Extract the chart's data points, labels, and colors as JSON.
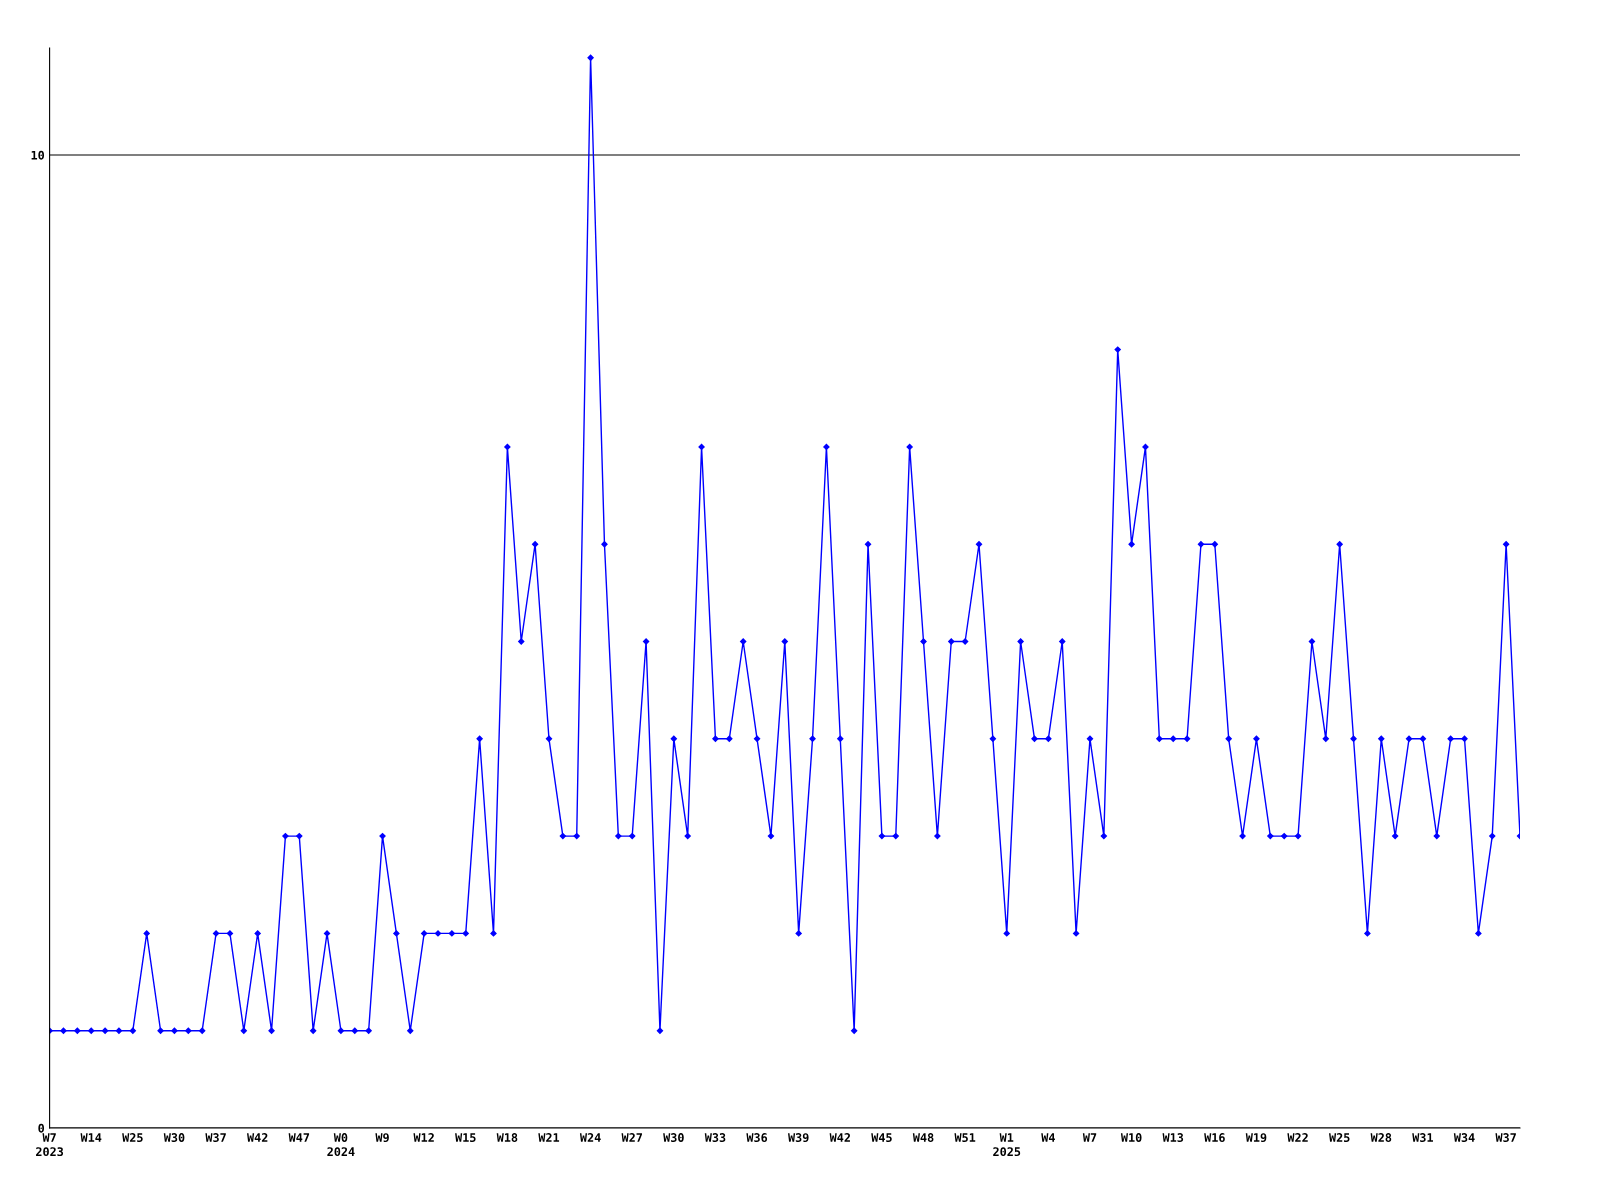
{
  "chart_data": {
    "type": "line",
    "categories": [
      "W7\n2023",
      null,
      null,
      "W14",
      null,
      null,
      "W25",
      null,
      null,
      "W30",
      null,
      null,
      "W37",
      null,
      null,
      "W42",
      null,
      null,
      "W47",
      null,
      null,
      "W0\n2024",
      null,
      null,
      "W9",
      null,
      null,
      "W12",
      null,
      null,
      "W15",
      null,
      null,
      "W18",
      null,
      null,
      "W21",
      null,
      null,
      "W24",
      null,
      null,
      "W27",
      null,
      null,
      "W30",
      null,
      null,
      "W33",
      null,
      null,
      "W36",
      null,
      null,
      "W39",
      null,
      null,
      "W42",
      null,
      null,
      "W45",
      null,
      null,
      "W48",
      null,
      null,
      "W51",
      null,
      null,
      "W1\n2025",
      null,
      null,
      "W4",
      null,
      null,
      "W7",
      null,
      null,
      "W10",
      null,
      null,
      "W13",
      null,
      null,
      "W16",
      null,
      null,
      "W19",
      null,
      null,
      "W22",
      null,
      null,
      "W25",
      null,
      null,
      "W28",
      null,
      null,
      "W31",
      null,
      null,
      "W34",
      null,
      null,
      "W37",
      null
    ],
    "series": [
      {
        "color": "#0000ff",
        "values": [
          1,
          1,
          1,
          1,
          1,
          1,
          1,
          2,
          1,
          1,
          1,
          1,
          2,
          2,
          1,
          2,
          1,
          3,
          3,
          1,
          2,
          1,
          1,
          1,
          3,
          2,
          1,
          2,
          2,
          2,
          2,
          4,
          2,
          7,
          5,
          6,
          4,
          3,
          3,
          11,
          6,
          3,
          3,
          5,
          1,
          4,
          3,
          7,
          4,
          4,
          5,
          4,
          3,
          5,
          2,
          4,
          7,
          4,
          1,
          6,
          3,
          3,
          7,
          5,
          3,
          5,
          5,
          6,
          4,
          2,
          5,
          4,
          4,
          5,
          2,
          4,
          3,
          8,
          6,
          7,
          4,
          4,
          4,
          6,
          6,
          4,
          3,
          4,
          3,
          3,
          3,
          5,
          4,
          6,
          4,
          2,
          4,
          3,
          4,
          4,
          3,
          4,
          4,
          2,
          3,
          6,
          3
        ]
      }
    ],
    "ylim": [
      0,
      11.1
    ],
    "yticks": [
      0,
      10
    ],
    "grid": "y",
    "marker": "diamond",
    "line_style": "solid",
    "legend": false
  }
}
